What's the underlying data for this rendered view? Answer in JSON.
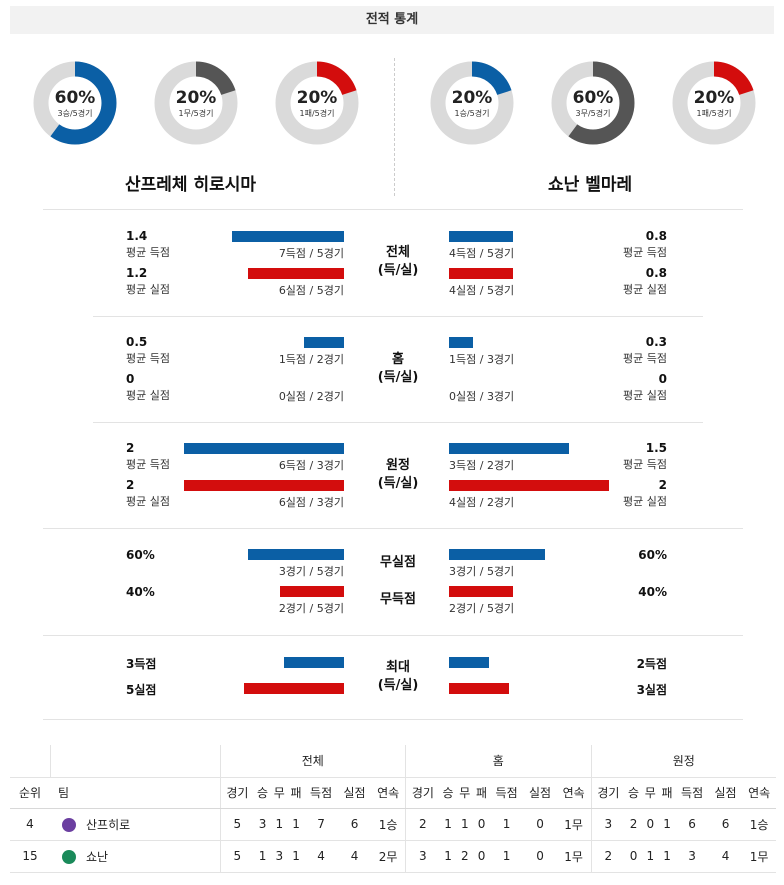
{
  "title": "전적 통계",
  "left": {
    "name": "산프레체 히로시마",
    "donuts": [
      {
        "pct": "60%",
        "sub": "3승/5경기",
        "value": 0.6,
        "color": "#0b5fa5"
      },
      {
        "pct": "20%",
        "sub": "1무/5경기",
        "value": 0.2,
        "color": "#555555"
      },
      {
        "pct": "20%",
        "sub": "1패/5경기",
        "value": 0.2,
        "color": "#d30d0d"
      }
    ]
  },
  "right": {
    "name": "쇼난 벨마레",
    "donuts": [
      {
        "pct": "20%",
        "sub": "1승/5경기",
        "value": 0.2,
        "color": "#0b5fa5"
      },
      {
        "pct": "60%",
        "sub": "3무/5경기",
        "value": 0.6,
        "color": "#555555"
      },
      {
        "pct": "20%",
        "sub": "1패/5경기",
        "value": 0.2,
        "color": "#d30d0d"
      }
    ]
  },
  "sections": {
    "total": {
      "label": "전체\n(득/실)",
      "l_score_val": "1.4",
      "l_score_lbl": "평균 득점",
      "l_score_cnt": "7득점 / 5경기",
      "l_score_bar": 1.4,
      "l_conc_val": "1.2",
      "l_conc_lbl": "평균 실점",
      "l_conc_cnt": "6실점 / 5경기",
      "l_conc_bar": 1.2,
      "r_score_val": "0.8",
      "r_score_lbl": "평균 득점",
      "r_score_cnt": "4득점 / 5경기",
      "r_score_bar": 0.8,
      "r_conc_val": "0.8",
      "r_conc_lbl": "평균 실점",
      "r_conc_cnt": "4실점 / 5경기",
      "r_conc_bar": 0.8
    },
    "home": {
      "label": "홈\n(득/실)",
      "l_score_val": "0.5",
      "l_score_lbl": "평균 득점",
      "l_score_cnt": "1득점 / 2경기",
      "l_score_bar": 0.5,
      "l_conc_val": "0",
      "l_conc_lbl": "평균 실점",
      "l_conc_cnt": "0실점 / 2경기",
      "l_conc_bar": 0,
      "r_score_val": "0.3",
      "r_score_lbl": "평균 득점",
      "r_score_cnt": "1득점 / 3경기",
      "r_score_bar": 0.3,
      "r_conc_val": "0",
      "r_conc_lbl": "평균 실점",
      "r_conc_cnt": "0실점 / 3경기",
      "r_conc_bar": 0
    },
    "away": {
      "label": "원정\n(득/실)",
      "l_score_val": "2",
      "l_score_lbl": "평균 득점",
      "l_score_cnt": "6득점 / 3경기",
      "l_score_bar": 2,
      "l_conc_val": "2",
      "l_conc_lbl": "평균 실점",
      "l_conc_cnt": "6실점 / 3경기",
      "l_conc_bar": 2,
      "r_score_val": "1.5",
      "r_score_lbl": "평균 득점",
      "r_score_cnt": "3득점 / 2경기",
      "r_score_bar": 1.5,
      "r_conc_val": "2",
      "r_conc_lbl": "평균 실점",
      "r_conc_cnt": "4실점 / 2경기",
      "r_conc_bar": 2
    },
    "clean": {
      "label_clean": "무실점",
      "label_blank": "무득점",
      "l_clean_val": "60%",
      "l_clean_cnt": "3경기 / 5경기",
      "l_clean_bar": 0.6,
      "l_blank_val": "40%",
      "l_blank_cnt": "2경기 / 5경기",
      "l_blank_bar": 0.4,
      "r_clean_val": "60%",
      "r_clean_cnt": "3경기 / 5경기",
      "r_clean_bar": 0.6,
      "r_blank_val": "40%",
      "r_blank_cnt": "2경기 / 5경기",
      "r_blank_bar": 0.4
    },
    "max": {
      "label": "최대\n(득/실)",
      "l_score_val": "3득점",
      "l_score_bar": 3,
      "l_conc_val": "5실점",
      "l_conc_bar": 5,
      "r_score_val": "2득점",
      "r_score_bar": 2,
      "r_conc_val": "3실점",
      "r_conc_bar": 3
    }
  },
  "table": {
    "groups": [
      "전체",
      "홈",
      "원정"
    ],
    "rank_header": "순위",
    "team_header": "팀",
    "col_headers": [
      "경기",
      "승",
      "무",
      "패",
      "득점",
      "실점",
      "연속"
    ],
    "rows": [
      {
        "rank": "4",
        "team": "산프히로",
        "emblem_color": "#6b3fa0",
        "total": [
          "5",
          "3",
          "1",
          "1",
          "7",
          "6",
          "1승"
        ],
        "home": [
          "2",
          "1",
          "1",
          "0",
          "1",
          "0",
          "1무"
        ],
        "away": [
          "3",
          "2",
          "0",
          "1",
          "6",
          "6",
          "1승"
        ]
      },
      {
        "rank": "15",
        "team": "쇼난",
        "emblem_color": "#1a8a5a",
        "total": [
          "5",
          "1",
          "3",
          "1",
          "4",
          "4",
          "2무"
        ],
        "home": [
          "3",
          "1",
          "2",
          "0",
          "1",
          "0",
          "1무"
        ],
        "away": [
          "2",
          "0",
          "1",
          "1",
          "3",
          "4",
          "1무"
        ]
      }
    ]
  }
}
